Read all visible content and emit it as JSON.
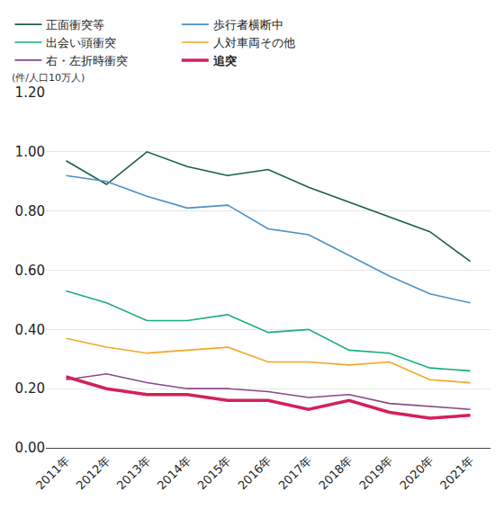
{
  "chart_data": {
    "type": "line",
    "y_label": "(件/人口10万人)",
    "categories": [
      "2011年",
      "2012年",
      "2013年",
      "2014年",
      "2015年",
      "2016年",
      "2017年",
      "2018年",
      "2019年",
      "2020年",
      "2021年"
    ],
    "series": [
      {
        "name": "正面衝突等",
        "color": "#1b5e4b",
        "values": [
          0.97,
          0.89,
          1.0,
          0.95,
          0.92,
          0.94,
          0.88,
          0.83,
          0.78,
          0.73,
          0.63
        ]
      },
      {
        "name": "歩行者横断中",
        "color": "#4a90c8",
        "values": [
          0.92,
          0.9,
          0.85,
          0.81,
          0.82,
          0.74,
          0.72,
          0.65,
          0.58,
          0.52,
          0.49
        ]
      },
      {
        "name": "出会い頭衝突",
        "color": "#1aad7c",
        "values": [
          0.53,
          0.49,
          0.43,
          0.43,
          0.45,
          0.39,
          0.4,
          0.33,
          0.32,
          0.27,
          0.26
        ]
      },
      {
        "name": "人対車両その他",
        "color": "#f5a623",
        "values": [
          0.37,
          0.34,
          0.32,
          0.33,
          0.34,
          0.29,
          0.29,
          0.28,
          0.29,
          0.23,
          0.22
        ]
      },
      {
        "name": "右・左折時衝突",
        "color": "#87488e",
        "values": [
          0.23,
          0.25,
          0.22,
          0.2,
          0.2,
          0.19,
          0.17,
          0.18,
          0.15,
          0.14,
          0.13
        ]
      },
      {
        "name": "追突",
        "color": "#d4205a",
        "line_style": "thick",
        "values": [
          0.24,
          0.2,
          0.18,
          0.18,
          0.16,
          0.16,
          0.13,
          0.16,
          0.12,
          0.1,
          0.11
        ]
      }
    ],
    "ylim": [
      0,
      1.2
    ],
    "yticks": [
      {
        "value": 0,
        "label": "0.00"
      },
      {
        "value": 0.2,
        "label": "0.20"
      },
      {
        "value": 0.4,
        "label": "0.40"
      },
      {
        "value": 0.6,
        "label": "0.60"
      },
      {
        "value": 0.8,
        "label": "0.80"
      },
      {
        "value": 1.0,
        "label": "1.00"
      },
      {
        "value": 1.2,
        "label": "1.20"
      }
    ],
    "grid": true,
    "legend": "top"
  }
}
